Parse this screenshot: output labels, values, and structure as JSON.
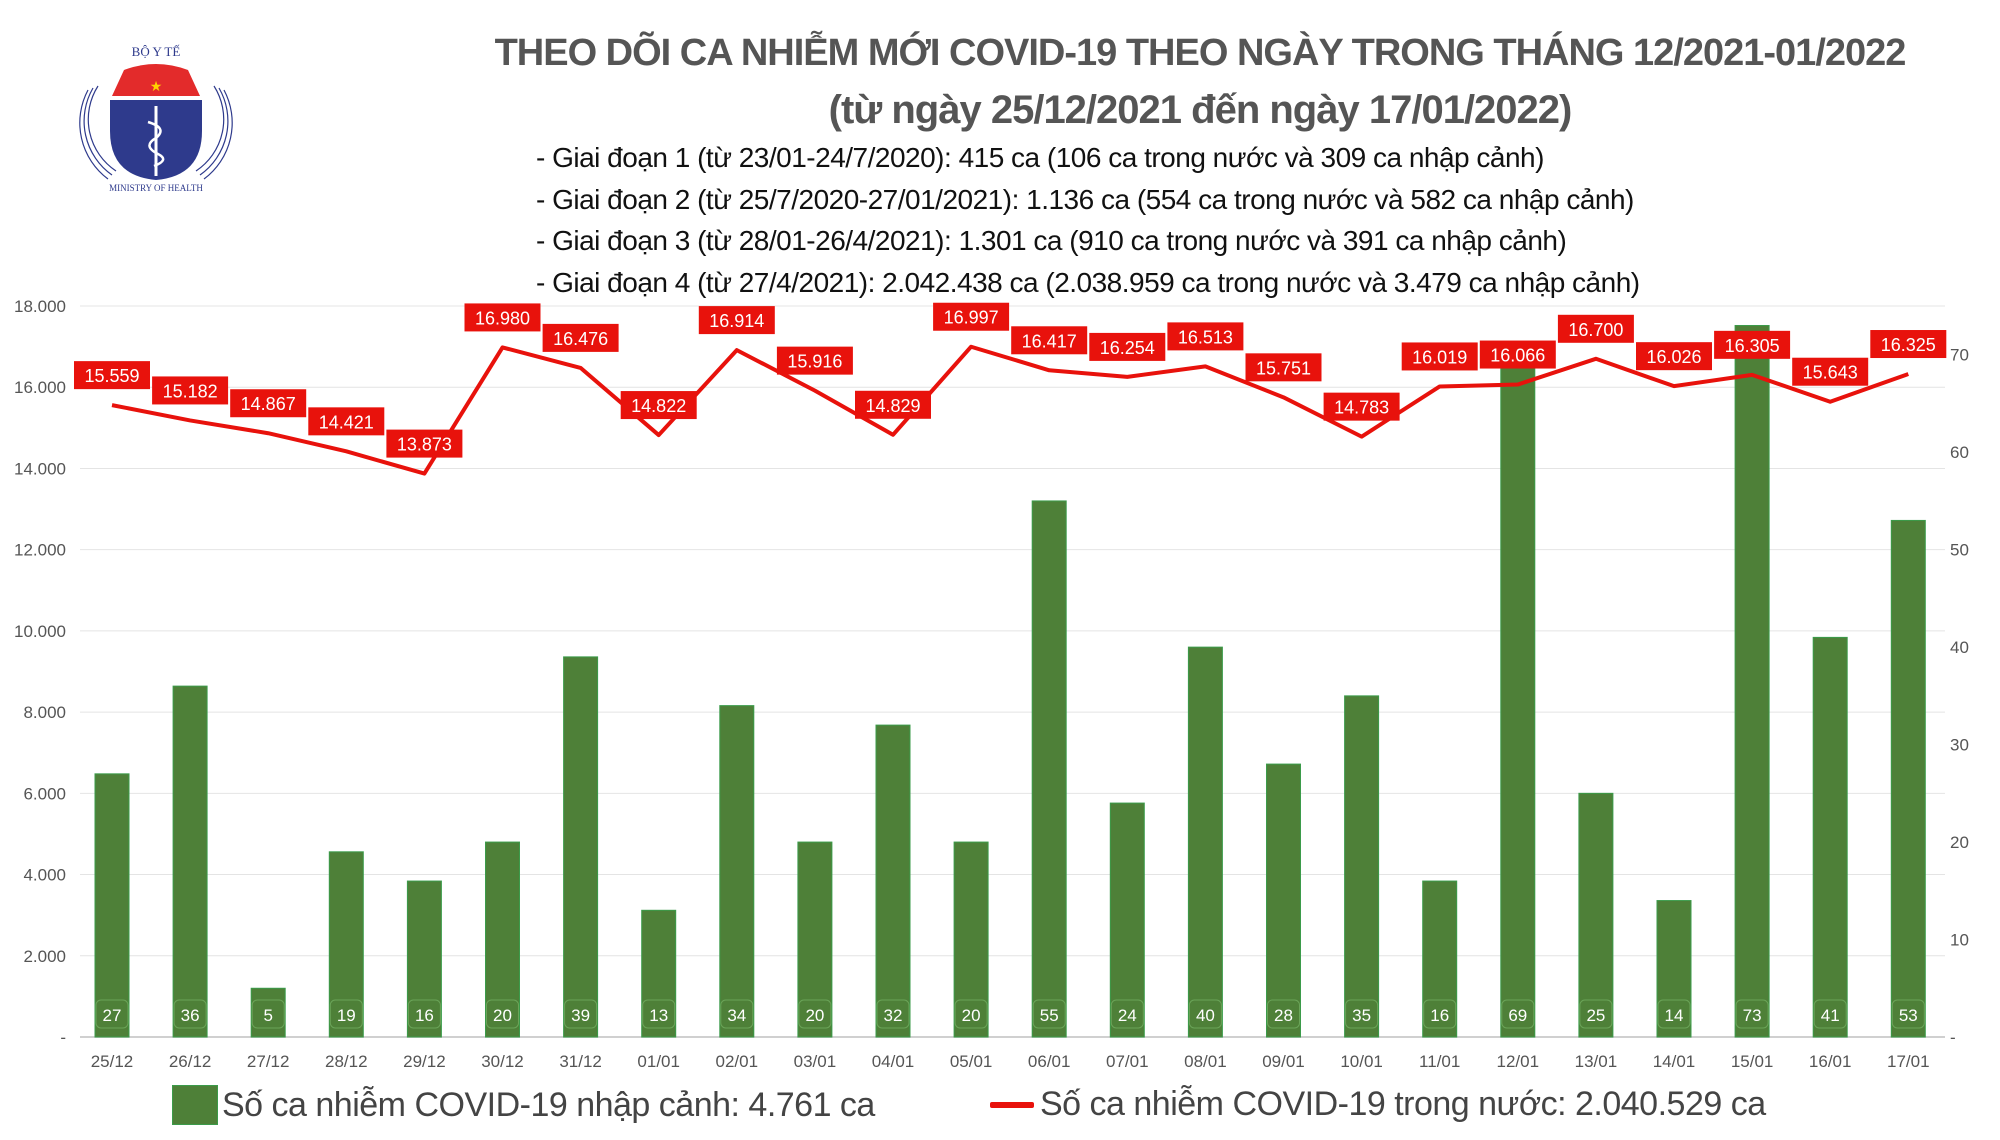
{
  "logo": {
    "top_text": "BỘ Y TẾ",
    "bottom_text": "MINISTRY OF HEALTH"
  },
  "header": {
    "title": "THEO DÕI CA NHIỄM MỚI COVID-19 THEO NGÀY TRONG THÁNG 12/2021-01/2022",
    "subtitle": "(từ ngày 25/12/2021 đến ngày 17/01/2022)",
    "bullets": [
      "- Giai đoạn 1 (từ 23/01-24/7/2020): 415 ca (106 ca trong nước và 309 ca nhập cảnh)",
      "- Giai đoạn 2 (từ 25/7/2020-27/01/2021): 1.136 ca (554 ca trong nước và 582 ca nhập cảnh)",
      "- Giai đoạn 3 (từ 28/01-26/4/2021): 1.301 ca (910 ca trong nước và 391 ca nhập cảnh)",
      "- Giai đoạn 4 (từ 27/4/2021): 2.042.438 ca (2.038.959 ca trong nước và 3.479 ca nhập cảnh)"
    ]
  },
  "chart_data": {
    "type": "bar+line",
    "categories": [
      "25/12",
      "26/12",
      "27/12",
      "28/12",
      "29/12",
      "30/12",
      "31/12",
      "01/01",
      "02/01",
      "03/01",
      "04/01",
      "05/01",
      "06/01",
      "07/01",
      "08/01",
      "09/01",
      "10/01",
      "11/01",
      "12/01",
      "13/01",
      "14/01",
      "15/01",
      "16/01",
      "17/01"
    ],
    "series": [
      {
        "name": "Số ca nhiễm COVID-19 nhập cảnh: 4.761 ca",
        "type": "bar",
        "axis": "right",
        "color": "#4e8038",
        "values": [
          27,
          36,
          5,
          19,
          16,
          20,
          39,
          13,
          34,
          20,
          32,
          20,
          55,
          24,
          40,
          28,
          35,
          16,
          69,
          25,
          14,
          73,
          41,
          53
        ]
      },
      {
        "name": "Số ca nhiễm COVID-19 trong nước: 2.040.529 ca",
        "type": "line",
        "axis": "left",
        "color": "#e8120c",
        "values": [
          15559,
          15182,
          14867,
          14421,
          13873,
          16980,
          16476,
          14822,
          16914,
          15916,
          14829,
          16997,
          16417,
          16254,
          16513,
          15751,
          14783,
          16019,
          16066,
          16700,
          16026,
          16305,
          15643,
          16325
        ],
        "labels": [
          "15.559",
          "15.182",
          "14.867",
          "14.421",
          "13.873",
          "16.980",
          "16.476",
          "14.822",
          "16.914",
          "15.916",
          "14.829",
          "16.997",
          "16.417",
          "16.254",
          "16.513",
          "15.751",
          "14.783",
          "16.019",
          "16.066",
          "16.700",
          "16.026",
          "16.305",
          "15.643",
          "16.325"
        ]
      }
    ],
    "y_left": {
      "range": [
        0,
        18000
      ],
      "ticks": [
        "-",
        "2.000",
        "4.000",
        "6.000",
        "8.000",
        "10.000",
        "12.000",
        "14.000",
        "16.000",
        "18.000"
      ]
    },
    "y_right": {
      "range": [
        0,
        75
      ],
      "ticks": [
        "-",
        "10",
        "20",
        "30",
        "40",
        "50",
        "60",
        "70"
      ]
    },
    "grid": true,
    "legend": "bottom"
  }
}
